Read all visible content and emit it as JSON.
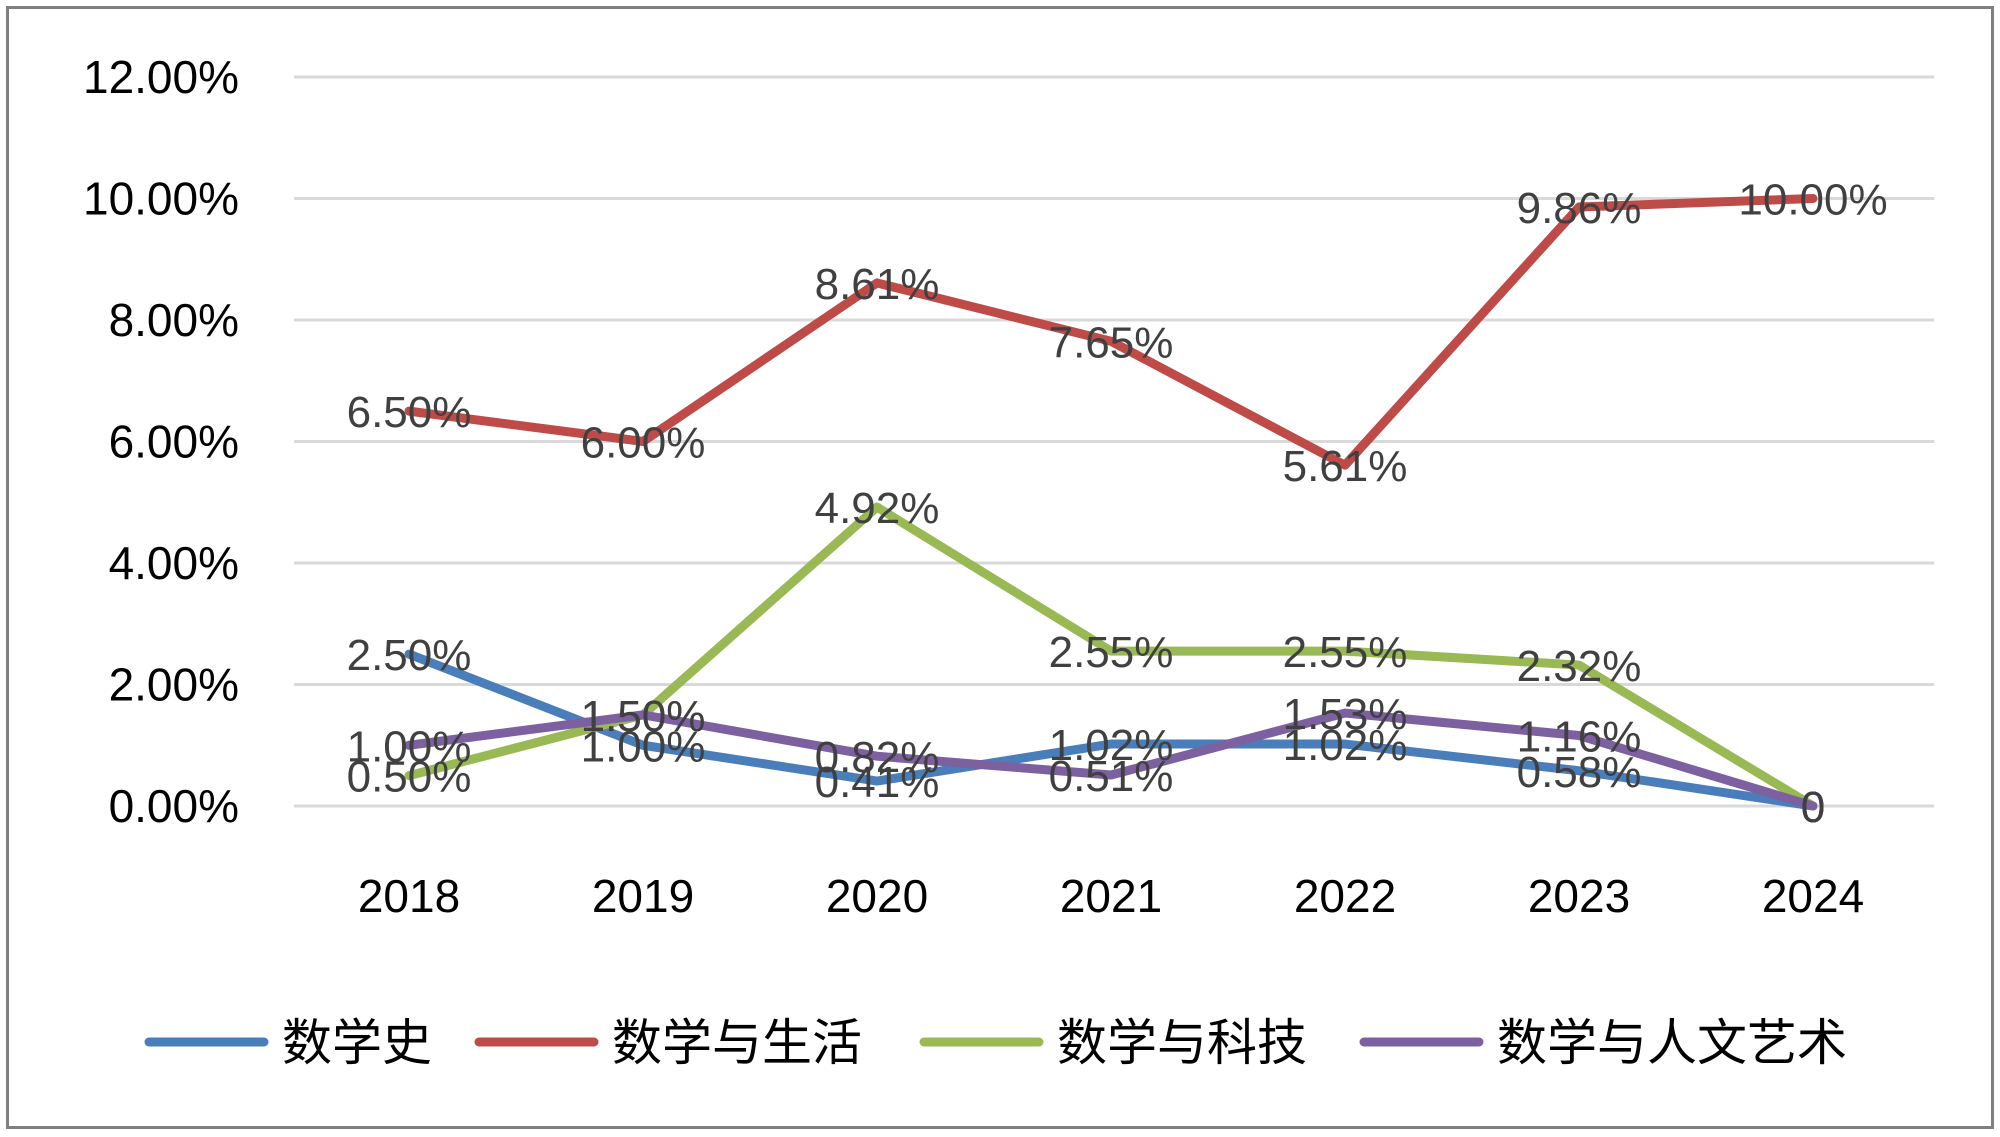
{
  "chart_data": {
    "type": "line",
    "categories": [
      "2018",
      "2019",
      "2020",
      "2021",
      "2022",
      "2023",
      "2024"
    ],
    "y_tick_labels": [
      "0.00%",
      "2.00%",
      "4.00%",
      "6.00%",
      "8.00%",
      "10.00%",
      "12.00%"
    ],
    "ylim": [
      0,
      12
    ],
    "y_unit": "percent",
    "grid": true,
    "legend_position": "bottom",
    "series": [
      {
        "name": "数学史",
        "color": "#4a7ebb",
        "values": [
          2.5,
          1.0,
          0.41,
          1.02,
          1.02,
          0.58,
          0
        ],
        "labels": [
          "2.50%",
          "1.00%",
          "0.41%",
          "1.02%",
          "1.02%",
          "0.58%",
          "0"
        ]
      },
      {
        "name": "数学与生活",
        "color": "#be4b48",
        "values": [
          6.5,
          6.0,
          8.61,
          7.65,
          5.61,
          9.86,
          10.0
        ],
        "labels": [
          "6.50%",
          "6.00%",
          "8.61%",
          "7.65%",
          "5.61%",
          "9.86%",
          "10.00%"
        ]
      },
      {
        "name": "数学与科技",
        "color": "#98b954",
        "values": [
          0.5,
          1.5,
          4.92,
          2.55,
          2.55,
          2.32,
          0
        ],
        "labels": [
          "0.50%",
          "1.50%",
          "4.92%",
          "2.55%",
          "2.55%",
          "2.32%",
          "0"
        ]
      },
      {
        "name": "数学与人文艺术",
        "color": "#7d60a0",
        "values": [
          1.0,
          1.5,
          0.82,
          0.51,
          1.53,
          1.16,
          0
        ],
        "labels": [
          "1.00%",
          "1.50%",
          "0.82%",
          "0.51%",
          "1.53%",
          "1.16%",
          "0"
        ]
      }
    ]
  }
}
